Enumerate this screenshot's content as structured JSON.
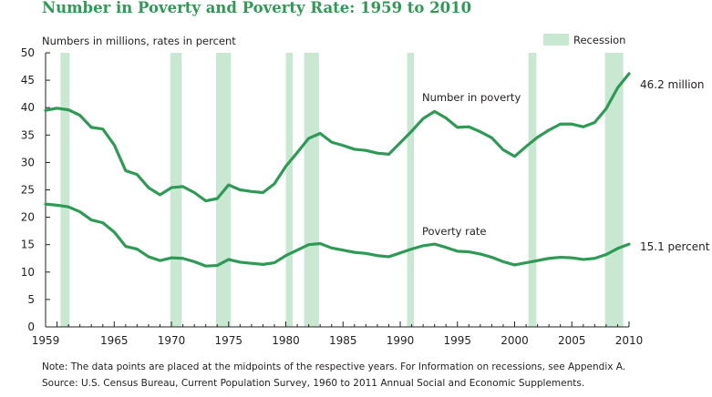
{
  "chart_data": {
    "type": "line",
    "title": "Number in Poverty and Poverty Rate: 1959 to 2010",
    "ylabel": "Numbers in millions, rates in percent",
    "xlabel": "",
    "xlim": [
      1959,
      2010
    ],
    "ylim": [
      0,
      50
    ],
    "x_ticks": [
      "1959",
      "1965",
      "1970",
      "1975",
      "1980",
      "1985",
      "1990",
      "1995",
      "2000",
      "2005",
      "2010"
    ],
    "y_ticks": [
      "0",
      "5",
      "10",
      "15",
      "20",
      "25",
      "30",
      "35",
      "40",
      "45",
      "50"
    ],
    "grid": false,
    "legend": {
      "label": "Recession",
      "position": "top-right"
    },
    "recessions": [
      [
        1960.3,
        1961.1
      ],
      [
        1969.9,
        1970.9
      ],
      [
        1973.9,
        1975.2
      ],
      [
        1980.0,
        1980.6
      ],
      [
        1981.6,
        1982.9
      ],
      [
        1990.6,
        1991.2
      ],
      [
        2001.2,
        2001.9
      ],
      [
        2007.9,
        2009.5
      ]
    ],
    "colors": {
      "line": "#2e9a55",
      "recession": "#c9e8d2",
      "title": "#2e9a55"
    },
    "x": [
      1959,
      1960,
      1961,
      1962,
      1963,
      1964,
      1965,
      1966,
      1967,
      1968,
      1969,
      1970,
      1971,
      1972,
      1973,
      1974,
      1975,
      1976,
      1977,
      1978,
      1979,
      1980,
      1981,
      1982,
      1983,
      1984,
      1985,
      1986,
      1987,
      1988,
      1989,
      1990,
      1991,
      1992,
      1993,
      1994,
      1995,
      1996,
      1997,
      1998,
      1999,
      2000,
      2001,
      2002,
      2003,
      2004,
      2005,
      2006,
      2007,
      2008,
      2009,
      2010
    ],
    "series": [
      {
        "name": "Number in poverty",
        "end_label": "46.2 million",
        "values": [
          39.5,
          39.9,
          39.6,
          38.6,
          36.4,
          36.1,
          33.2,
          28.5,
          27.8,
          25.4,
          24.1,
          25.4,
          25.6,
          24.5,
          23.0,
          23.4,
          25.9,
          25.0,
          24.7,
          24.5,
          26.1,
          29.3,
          31.8,
          34.4,
          35.3,
          33.7,
          33.1,
          32.4,
          32.2,
          31.7,
          31.5,
          33.6,
          35.7,
          38.0,
          39.3,
          38.1,
          36.4,
          36.5,
          35.6,
          34.5,
          32.3,
          31.1,
          32.9,
          34.6,
          35.9,
          37.0,
          37.0,
          36.5,
          37.3,
          39.8,
          43.6,
          46.2
        ]
      },
      {
        "name": "Poverty rate",
        "end_label": "15.1 percent",
        "values": [
          22.4,
          22.2,
          21.9,
          21.0,
          19.5,
          19.0,
          17.3,
          14.7,
          14.2,
          12.8,
          12.1,
          12.6,
          12.5,
          11.9,
          11.1,
          11.2,
          12.3,
          11.8,
          11.6,
          11.4,
          11.7,
          13.0,
          14.0,
          15.0,
          15.2,
          14.4,
          14.0,
          13.6,
          13.4,
          13.0,
          12.8,
          13.5,
          14.2,
          14.8,
          15.1,
          14.5,
          13.8,
          13.7,
          13.3,
          12.7,
          11.9,
          11.3,
          11.7,
          12.1,
          12.5,
          12.7,
          12.6,
          12.3,
          12.5,
          13.2,
          14.3,
          15.1
        ]
      }
    ]
  },
  "notes": {
    "note": "Note:  The data points are placed at the midpoints of the respective years. For Information on recessions, see Appendix A.",
    "source": "Source:  U.S. Census Bureau, Current Population Survey, 1960 to 2011 Annual Social and Economic Supplements."
  }
}
